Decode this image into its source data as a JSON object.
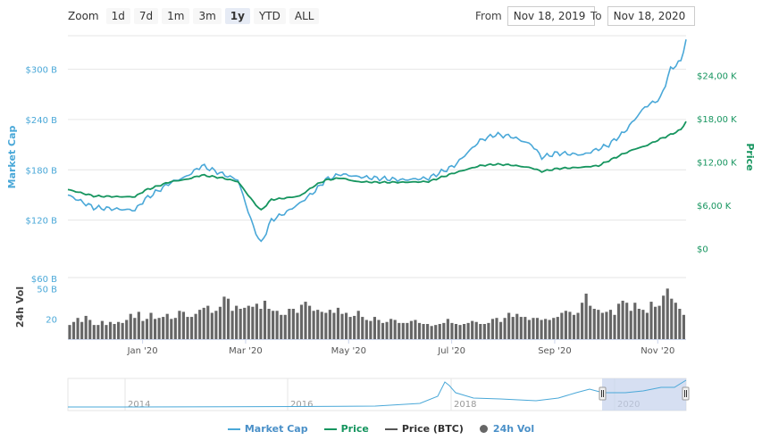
{
  "zoom": {
    "label": "Zoom",
    "buttons": [
      {
        "label": "1d",
        "active": false
      },
      {
        "label": "7d",
        "active": false
      },
      {
        "label": "1m",
        "active": false
      },
      {
        "label": "3m",
        "active": false
      },
      {
        "label": "1y",
        "active": true
      },
      {
        "label": "YTD",
        "active": false
      },
      {
        "label": "ALL",
        "active": false
      }
    ]
  },
  "range": {
    "from_label": "From",
    "from_value": "Nov 18, 2019",
    "to_label": "To",
    "to_value": "Nov 18, 2020"
  },
  "colors": {
    "market_cap": "#4aa8d8",
    "price": "#16955f",
    "price_btc": "#555555",
    "volume": "#666666",
    "navigator_fill": "#c5d2ec",
    "grid": "#e6e6e6"
  },
  "chart_data": {
    "type": "line",
    "title": "",
    "x_axis": {
      "range": [
        "Nov 18, 2019",
        "Nov 18, 2020"
      ],
      "tick_labels": [
        "Jan '20",
        "Mar '20",
        "May '20",
        "Jul '20",
        "Sep '20",
        "Nov '20"
      ],
      "tick_months": [
        1.45,
        3.45,
        5.45,
        7.45,
        9.45,
        11.45
      ]
    },
    "left_axis": {
      "label": "Market Cap",
      "ticks": [
        120,
        180,
        240,
        300
      ],
      "tick_labels": [
        "$120 B",
        "$180 B",
        "$240 B",
        "$300 B"
      ],
      "ylim": [
        60,
        340
      ]
    },
    "right_axis": {
      "label": "Price",
      "ticks": [
        0,
        6000,
        12000,
        18000,
        24000
      ],
      "tick_labels": [
        "$0",
        "$6,00 K",
        "$12,00 K",
        "$18,00 K",
        "$24,00 K"
      ],
      "ylim": [
        -3000,
        29500
      ]
    },
    "volume_axis": {
      "label": "24h Vol",
      "ticks": [
        20,
        50,
        60
      ],
      "tick_labels": [
        "20",
        "50 B",
        "$60 B"
      ],
      "ylim": [
        0,
        60
      ]
    },
    "series": [
      {
        "name": "Market Cap",
        "axis": "left",
        "unit": "B USD",
        "x_month": [
          0,
          0.5,
          1,
          1.3,
          1.5,
          2,
          2.3,
          2.6,
          3,
          3.3,
          3.6,
          3.75,
          3.95,
          4.2,
          4.5,
          4.8,
          5.0,
          5.3,
          5.6,
          6.0,
          6.5,
          7.0,
          7.5,
          8.0,
          8.3,
          8.6,
          9.0,
          9.2,
          9.5,
          10.0,
          10.3,
          10.5,
          10.8,
          11.0,
          11.2,
          11.5,
          11.7,
          11.9,
          12.0
        ],
        "values": [
          150,
          135,
          133,
          132,
          145,
          165,
          172,
          185,
          175,
          168,
          112,
          92,
          120,
          128,
          140,
          155,
          168,
          175,
          172,
          170,
          168,
          170,
          185,
          215,
          222,
          220,
          210,
          195,
          200,
          198,
          205,
          210,
          225,
          240,
          255,
          265,
          300,
          310,
          335
        ]
      },
      {
        "name": "Price",
        "axis": "right",
        "unit": "USD",
        "x_month": [
          0,
          0.5,
          1,
          1.3,
          1.5,
          2,
          2.3,
          2.6,
          3,
          3.3,
          3.6,
          3.75,
          3.95,
          4.2,
          4.5,
          4.8,
          5.0,
          5.3,
          5.6,
          6.0,
          6.5,
          7.0,
          7.5,
          8.0,
          8.3,
          8.6,
          9.0,
          9.2,
          9.5,
          10.0,
          10.3,
          10.5,
          10.8,
          11.0,
          11.2,
          11.5,
          11.7,
          11.9,
          12.0
        ],
        "values": [
          8200,
          7300,
          7200,
          7200,
          8100,
          9300,
          9600,
          10200,
          9800,
          9300,
          6500,
          5300,
          6800,
          7000,
          7300,
          8800,
          9500,
          9800,
          9300,
          9200,
          9200,
          9300,
          10500,
          11500,
          11700,
          11600,
          11200,
          10700,
          11100,
          11300,
          11500,
          12200,
          13200,
          13800,
          14200,
          15200,
          15800,
          16500,
          17600
        ]
      }
    ],
    "volume_bars": {
      "name": "24h Vol",
      "unit": "B USD",
      "values": [
        14,
        17,
        21,
        17,
        23,
        19,
        14,
        14,
        18,
        14,
        17,
        15,
        17,
        16,
        19,
        25,
        21,
        27,
        18,
        20,
        26,
        20,
        21,
        22,
        25,
        20,
        21,
        28,
        27,
        22,
        22,
        25,
        29,
        31,
        33,
        26,
        28,
        32,
        42,
        40,
        28,
        33,
        30,
        31,
        33,
        32,
        35,
        30,
        38,
        30,
        28,
        28,
        24,
        24,
        30,
        30,
        26,
        34,
        37,
        33,
        28,
        29,
        27,
        26,
        29,
        26,
        31,
        25,
        26,
        22,
        23,
        28,
        22,
        19,
        18,
        22,
        19,
        16,
        17,
        20,
        19,
        16,
        16,
        16,
        18,
        19,
        16,
        15,
        15,
        13,
        14,
        15,
        16,
        20,
        16,
        15,
        14,
        15,
        16,
        18,
        17,
        15,
        15,
        16,
        20,
        21,
        17,
        21,
        26,
        22,
        25,
        22,
        22,
        19,
        21,
        21,
        19,
        20,
        19,
        21,
        22,
        26,
        28,
        27,
        24,
        26,
        36,
        45,
        33,
        30,
        29,
        26,
        27,
        29,
        24,
        35,
        38,
        36,
        28,
        36,
        30,
        29,
        26,
        37,
        32,
        33,
        43,
        50,
        40,
        36,
        30,
        24
      ]
    },
    "navigator": {
      "year_labels": [
        "2014",
        "2016",
        "2018",
        "2020"
      ]
    }
  },
  "legend": [
    {
      "label": "Market Cap",
      "kind": "line",
      "color": "#4aa8d8"
    },
    {
      "label": "Price",
      "kind": "line",
      "color": "#16955f"
    },
    {
      "label": "Price (BTC)",
      "kind": "line",
      "color": "#555555"
    },
    {
      "label": "24h Vol",
      "kind": "dot",
      "color": "#666666"
    }
  ]
}
